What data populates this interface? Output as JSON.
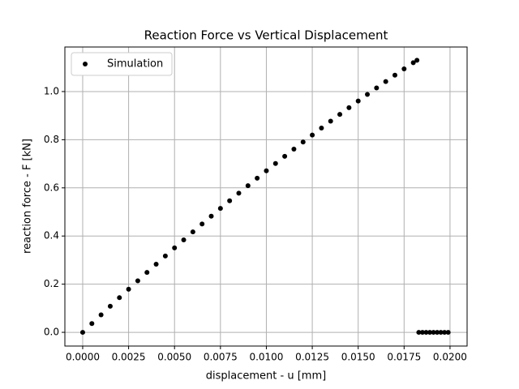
{
  "chart_data": {
    "type": "scatter",
    "title": "Reaction Force vs Vertical Displacement",
    "xlabel": "displacement - u [mm]",
    "ylabel": "reaction force - F [kN]",
    "xlim": [
      -0.00097,
      0.02093
    ],
    "ylim": [
      -0.057,
      1.185
    ],
    "xticks": [
      {
        "value": 0,
        "label": "0.0000"
      },
      {
        "value": 0.0025,
        "label": "0.0025"
      },
      {
        "value": 0.005,
        "label": "0.0050"
      },
      {
        "value": 0.0075,
        "label": "0.0075"
      },
      {
        "value": 0.01,
        "label": "0.0100"
      },
      {
        "value": 0.0125,
        "label": "0.0125"
      },
      {
        "value": 0.015,
        "label": "0.0150"
      },
      {
        "value": 0.0175,
        "label": "0.0175"
      },
      {
        "value": 0.02,
        "label": "0.0200"
      }
    ],
    "yticks": [
      {
        "value": 0,
        "label": "0.0"
      },
      {
        "value": 0.2,
        "label": "0.2"
      },
      {
        "value": 0.4,
        "label": "0.4"
      },
      {
        "value": 0.6,
        "label": "0.6"
      },
      {
        "value": 0.8,
        "label": "0.8"
      },
      {
        "value": 1,
        "label": "1.0"
      }
    ],
    "grid": true,
    "legend": "upper left",
    "series": [
      {
        "name": "Simulation",
        "color": "#000000",
        "x": [
          0,
          0.0005,
          0.001,
          0.0015,
          0.002,
          0.0025,
          0.003,
          0.0035,
          0.004,
          0.0045,
          0.005,
          0.0055,
          0.006,
          0.0065,
          0.007,
          0.0075,
          0.008,
          0.0085,
          0.009,
          0.0095,
          0.01,
          0.0105,
          0.011,
          0.0115,
          0.012,
          0.0125,
          0.013,
          0.0135,
          0.014,
          0.0145,
          0.015,
          0.0155,
          0.016,
          0.0165,
          0.017,
          0.0175,
          0.018,
          0.0182,
          0.0183,
          0.0185,
          0.0187,
          0.0189,
          0.0191,
          0.0193,
          0.0195,
          0.0197,
          0.0199
        ],
        "values": [
          0,
          0.0364,
          0.0726,
          0.1084,
          0.1439,
          0.1791,
          0.2141,
          0.2487,
          0.283,
          0.317,
          0.3507,
          0.3841,
          0.4171,
          0.4499,
          0.4824,
          0.5146,
          0.5464,
          0.578,
          0.6092,
          0.6402,
          0.6709,
          0.7012,
          0.7312,
          0.761,
          0.7904,
          0.8195,
          0.8483,
          0.8769,
          0.9051,
          0.933,
          0.9606,
          0.9879,
          1.0149,
          1.0415,
          1.0679,
          1.094,
          1.1198,
          1.13,
          0,
          0,
          0,
          0,
          0,
          0,
          0,
          0,
          0
        ]
      }
    ]
  }
}
